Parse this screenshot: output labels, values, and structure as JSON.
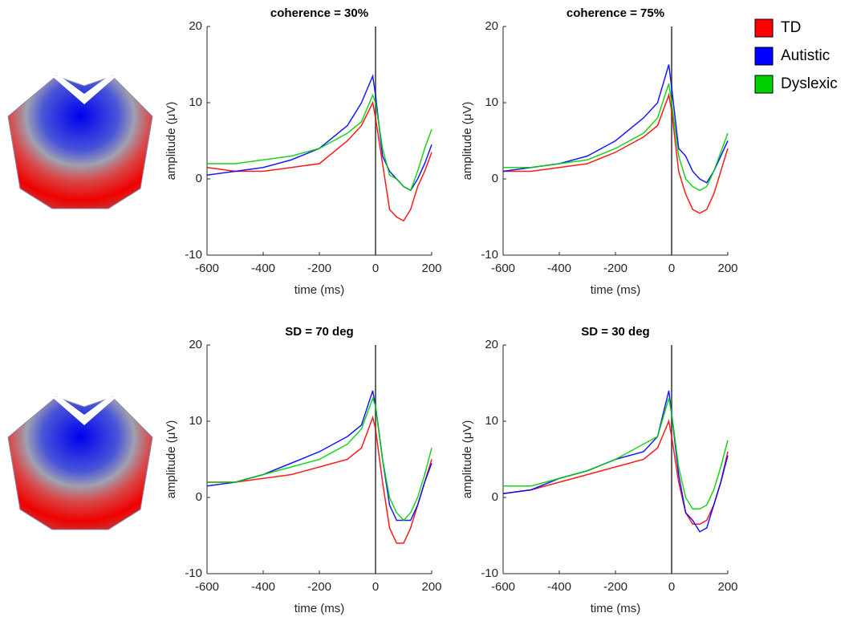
{
  "chart_data": [
    {
      "type": "line",
      "title": "coherence = 30%",
      "x_label": "time (ms)",
      "y_label": "amplitude (μV)",
      "x": [
        -600,
        -500,
        -400,
        -300,
        -200,
        -100,
        -50,
        -10,
        0,
        25,
        50,
        75,
        100,
        125,
        150,
        175,
        200
      ],
      "xlim": [
        -600,
        200
      ],
      "xticks": [
        -600,
        -400,
        -200,
        0,
        200
      ],
      "ylim": [
        -10,
        20
      ],
      "yticks": [
        -10,
        0,
        10,
        20
      ],
      "vline": 0,
      "series": [
        {
          "name": "TD",
          "color": "#ff0000",
          "values": [
            1.5,
            1,
            1,
            1.5,
            2,
            5,
            7,
            10,
            8,
            2,
            -4,
            -5,
            -5.5,
            -4,
            -1,
            1,
            3.5
          ]
        },
        {
          "name": "Autistic",
          "color": "#0000ff",
          "values": [
            0.5,
            1,
            1.5,
            2.5,
            4,
            7,
            10,
            13.5,
            11,
            3,
            1,
            0,
            -1,
            -1.5,
            0,
            2,
            4.5
          ]
        },
        {
          "name": "Dyslexic",
          "color": "#00d000",
          "values": [
            2,
            2,
            2.5,
            3,
            4,
            6,
            7.5,
            11,
            10,
            4,
            0.5,
            0,
            -1,
            -1.5,
            1,
            4,
            6.5
          ]
        }
      ]
    },
    {
      "type": "line",
      "title": "coherence = 75%",
      "x_label": "time (ms)",
      "y_label": "amplitude (μV)",
      "x": [
        -600,
        -500,
        -400,
        -300,
        -200,
        -100,
        -50,
        -10,
        0,
        25,
        50,
        75,
        100,
        125,
        150,
        175,
        200
      ],
      "xlim": [
        -600,
        200
      ],
      "xticks": [
        -600,
        -400,
        -200,
        0,
        200
      ],
      "ylim": [
        -10,
        20
      ],
      "yticks": [
        -10,
        0,
        10,
        20
      ],
      "vline": 0,
      "series": [
        {
          "name": "TD",
          "color": "#ff0000",
          "values": [
            1,
            1,
            1.5,
            2,
            3.5,
            5.5,
            7,
            11,
            9,
            1,
            -2,
            -4,
            -4.5,
            -4,
            -2,
            1,
            4
          ]
        },
        {
          "name": "Autistic",
          "color": "#0000ff",
          "values": [
            1,
            1.5,
            2,
            3,
            5,
            8,
            10,
            15,
            12,
            4,
            3,
            1,
            0,
            -0.5,
            1,
            3,
            5
          ]
        },
        {
          "name": "Dyslexic",
          "color": "#00d000",
          "values": [
            1.5,
            1.5,
            2,
            2.5,
            4,
            6,
            8,
            12.5,
            10,
            3,
            0,
            -1,
            -1.5,
            -1,
            1,
            3.5,
            6
          ]
        }
      ]
    },
    {
      "type": "line",
      "title": "SD = 70 deg",
      "x_label": "time (ms)",
      "y_label": "amplitude (μV)",
      "x": [
        -600,
        -500,
        -400,
        -300,
        -200,
        -100,
        -50,
        -10,
        0,
        25,
        50,
        75,
        100,
        125,
        150,
        175,
        200
      ],
      "xlim": [
        -600,
        200
      ],
      "xticks": [
        -600,
        -400,
        -200,
        0,
        200
      ],
      "ylim": [
        -10,
        20
      ],
      "yticks": [
        -10,
        0,
        10,
        20
      ],
      "vline": 0,
      "series": [
        {
          "name": "TD",
          "color": "#ff0000",
          "values": [
            2,
            2,
            2.5,
            3,
            4,
            5,
            6.5,
            10.5,
            9,
            2,
            -4,
            -6,
            -6,
            -4,
            -1,
            2,
            5
          ]
        },
        {
          "name": "Autistic",
          "color": "#0000ff",
          "values": [
            1.5,
            2,
            3,
            4.5,
            6,
            8,
            9.5,
            14,
            12,
            5,
            -1,
            -3,
            -3,
            -3,
            -1,
            2,
            4.5
          ]
        },
        {
          "name": "Dyslexic",
          "color": "#00d000",
          "values": [
            2,
            2,
            3,
            4,
            5,
            7,
            9,
            13,
            12,
            5,
            0,
            -2,
            -3,
            -2,
            0,
            3,
            6.5
          ]
        }
      ]
    },
    {
      "type": "line",
      "title": "SD = 30 deg",
      "x_label": "time (ms)",
      "y_label": "amplitude (μV)",
      "x": [
        -600,
        -500,
        -400,
        -300,
        -200,
        -100,
        -50,
        -10,
        0,
        25,
        50,
        75,
        100,
        125,
        150,
        175,
        200
      ],
      "xlim": [
        -600,
        200
      ],
      "xticks": [
        -600,
        -400,
        -200,
        0,
        200
      ],
      "ylim": [
        -10,
        20
      ],
      "yticks": [
        -10,
        0,
        10,
        20
      ],
      "vline": 0,
      "series": [
        {
          "name": "TD",
          "color": "#ff0000",
          "values": [
            0.5,
            1,
            2,
            3,
            4,
            5,
            6.5,
            10,
            8,
            2,
            -2,
            -3.5,
            -3.5,
            -3,
            -1,
            2,
            6
          ]
        },
        {
          "name": "Autistic",
          "color": "#0000ff",
          "values": [
            0.5,
            1,
            2.5,
            3.5,
            5,
            6,
            8,
            14,
            11,
            3,
            -2,
            -3,
            -4.5,
            -4,
            -1,
            2,
            5.5
          ]
        },
        {
          "name": "Dyslexic",
          "color": "#00d000",
          "values": [
            1.5,
            1.5,
            2.5,
            3.5,
            5,
            7,
            8,
            13,
            11,
            4,
            0,
            -1.5,
            -1.5,
            -1,
            1,
            4,
            7.5
          ]
        }
      ]
    }
  ]
}
